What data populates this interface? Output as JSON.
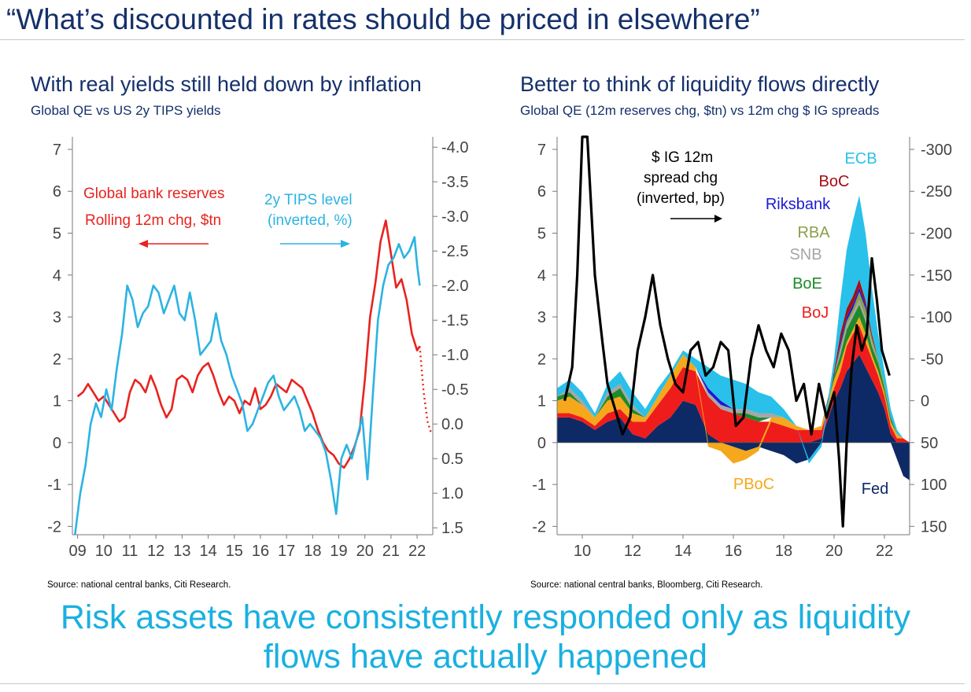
{
  "header": {
    "title": "“What’s discounted in rates should be priced in elsewhere”"
  },
  "left_panel": {
    "title": "With real yields still held down by inflation",
    "subtitle": "Global QE vs US 2y TIPS yields",
    "source": "Source: national central banks, Citi Research."
  },
  "right_panel": {
    "title": "Better to think of liquidity flows directly",
    "subtitle": "Global QE (12m reserves chg, $tn) vs 12m chg $ IG spreads",
    "source": "Source: national central banks, Bloomberg, Citi Research."
  },
  "footer": {
    "line1": "Risk assets have consistently responded only as liquidity",
    "line2": "flows have actually happened"
  },
  "chart_data": [
    {
      "type": "line",
      "title": "With real yields still held down by inflation",
      "subtitle": "Global QE vs US 2y TIPS yields",
      "x_ticks": [
        "09",
        "10",
        "11",
        "12",
        "13",
        "14",
        "15",
        "16",
        "17",
        "18",
        "19",
        "20",
        "21",
        "22"
      ],
      "x_range": [
        2008.8,
        2022.6
      ],
      "y_left_ticks": [
        "7",
        "6",
        "5",
        "4",
        "3",
        "2",
        "1",
        "0",
        "-1",
        "-2"
      ],
      "y_left_range": [
        -2.2,
        7.3
      ],
      "y_right_ticks": [
        "-4.0",
        "-3.5",
        "-3.0",
        "-2.5",
        "-2.0",
        "-1.5",
        "-1.0",
        "-0.5",
        "0.0",
        "0.5",
        "1.0",
        "1.5"
      ],
      "y_right_range_inverted": [
        1.6,
        -4.15
      ],
      "annotations": {
        "red_label_1": "Global bank reserves",
        "red_label_2": "Rolling 12m chg, $tn",
        "blue_label_1": "2y TIPS level",
        "blue_label_2": "(inverted, %)"
      },
      "colors": {
        "reserves": "#e8231e",
        "tips": "#2cb3e2"
      },
      "series": [
        {
          "name": "Global bank reserves, rolling 12m chg ($tn), left axis",
          "axis": "left",
          "x": [
            2009.0,
            2009.2,
            2009.4,
            2009.6,
            2009.8,
            2010.0,
            2010.2,
            2010.4,
            2010.6,
            2010.8,
            2011.0,
            2011.2,
            2011.4,
            2011.6,
            2011.8,
            2012.0,
            2012.2,
            2012.4,
            2012.6,
            2012.8,
            2013.0,
            2013.2,
            2013.4,
            2013.6,
            2013.8,
            2014.0,
            2014.2,
            2014.4,
            2014.6,
            2014.8,
            2015.0,
            2015.2,
            2015.4,
            2015.6,
            2015.8,
            2016.0,
            2016.2,
            2016.4,
            2016.6,
            2016.8,
            2017.0,
            2017.2,
            2017.4,
            2017.6,
            2017.8,
            2018.0,
            2018.2,
            2018.4,
            2018.6,
            2018.8,
            2019.0,
            2019.2,
            2019.4,
            2019.6,
            2019.8,
            2020.0,
            2020.2,
            2020.4,
            2020.6,
            2020.8,
            2021.0,
            2021.2,
            2021.4,
            2021.6,
            2021.8,
            2022.0,
            2022.1
          ],
          "values": [
            1.1,
            1.2,
            1.4,
            1.2,
            1.0,
            1.1,
            0.9,
            0.7,
            0.5,
            0.6,
            1.2,
            1.5,
            1.4,
            1.2,
            1.6,
            1.3,
            0.9,
            0.6,
            0.8,
            1.5,
            1.6,
            1.5,
            1.2,
            1.6,
            1.8,
            1.9,
            1.6,
            1.2,
            0.9,
            1.1,
            1.0,
            0.7,
            1.0,
            0.9,
            1.3,
            0.8,
            0.9,
            1.1,
            1.4,
            1.3,
            1.2,
            1.5,
            1.4,
            1.3,
            1.0,
            0.7,
            0.3,
            0.0,
            -0.2,
            -0.3,
            -0.5,
            -0.6,
            -0.4,
            -0.1,
            0.3,
            1.5,
            3.0,
            3.8,
            4.8,
            5.3,
            4.5,
            3.7,
            3.9,
            3.4,
            2.6,
            2.2,
            2.3
          ]
        },
        {
          "name": "Global bank reserves, projected (dotted)",
          "axis": "left",
          "style": "dotted",
          "x": [
            2022.1,
            2022.25,
            2022.4,
            2022.55
          ],
          "values": [
            2.3,
            1.2,
            0.5,
            0.2
          ]
        },
        {
          "name": "US 2y TIPS yield (inverted, %), right axis",
          "axis": "right",
          "x": [
            2008.9,
            2009.0,
            2009.1,
            2009.3,
            2009.5,
            2009.7,
            2009.9,
            2010.1,
            2010.3,
            2010.5,
            2010.7,
            2010.9,
            2011.1,
            2011.3,
            2011.5,
            2011.7,
            2011.9,
            2012.1,
            2012.3,
            2012.5,
            2012.7,
            2012.9,
            2013.1,
            2013.3,
            2013.5,
            2013.7,
            2013.9,
            2014.1,
            2014.3,
            2014.5,
            2014.7,
            2014.9,
            2015.1,
            2015.3,
            2015.5,
            2015.7,
            2015.9,
            2016.1,
            2016.3,
            2016.5,
            2016.7,
            2016.9,
            2017.1,
            2017.3,
            2017.5,
            2017.7,
            2017.9,
            2018.1,
            2018.3,
            2018.5,
            2018.7,
            2018.9,
            2019.1,
            2019.3,
            2019.5,
            2019.7,
            2019.9,
            2020.1,
            2020.3,
            2020.5,
            2020.7,
            2020.9,
            2021.1,
            2021.3,
            2021.5,
            2021.7,
            2021.9,
            2022.0,
            2022.1
          ],
          "values": [
            1.6,
            1.3,
            1.0,
            0.6,
            0.0,
            -0.3,
            -0.1,
            -0.5,
            -0.2,
            -0.8,
            -1.3,
            -2.0,
            -1.8,
            -1.4,
            -1.6,
            -1.7,
            -2.0,
            -1.9,
            -1.6,
            -1.8,
            -2.0,
            -1.6,
            -1.5,
            -1.9,
            -1.5,
            -1.0,
            -1.1,
            -1.2,
            -1.6,
            -1.2,
            -1.0,
            -0.7,
            -0.5,
            -0.3,
            0.1,
            0.0,
            -0.2,
            -0.4,
            -0.6,
            -0.7,
            -0.4,
            -0.2,
            -0.3,
            -0.4,
            -0.2,
            0.1,
            0.0,
            0.1,
            0.2,
            0.4,
            0.8,
            1.3,
            0.5,
            0.3,
            0.5,
            0.2,
            -0.1,
            0.8,
            -0.4,
            -1.5,
            -2.0,
            -2.3,
            -2.4,
            -2.6,
            -2.4,
            -2.5,
            -2.7,
            -2.3,
            -2.0
          ]
        }
      ]
    },
    {
      "type": "area",
      "stacked": true,
      "title": "Better to think of liquidity flows directly",
      "subtitle": "Global QE (12m reserves chg, $tn) vs 12m chg $ IG spreads",
      "x_ticks": [
        "10",
        "12",
        "14",
        "16",
        "18",
        "20",
        "22"
      ],
      "x_range": [
        2009.0,
        2023.0
      ],
      "y_left_ticks": [
        "7",
        "6",
        "5",
        "4",
        "3",
        "2",
        "1",
        "0",
        "-1",
        "-2"
      ],
      "y_left_range": [
        -2.2,
        7.3
      ],
      "y_right_ticks": [
        "-300",
        "-250",
        "-200",
        "-150",
        "-100",
        "-50",
        "0",
        "50",
        "100",
        "150"
      ],
      "y_right_range_inverted": [
        160,
        -315
      ],
      "annotations": {
        "spread_line_1": "$ IG 12m",
        "spread_line_2": "spread chg",
        "spread_line_3": "(inverted, bp)"
      },
      "x": [
        2009.0,
        2009.5,
        2010.0,
        2010.5,
        2011.0,
        2011.5,
        2012.0,
        2012.5,
        2013.0,
        2013.5,
        2014.0,
        2014.5,
        2015.0,
        2015.5,
        2016.0,
        2016.5,
        2017.0,
        2017.5,
        2018.0,
        2018.5,
        2019.0,
        2019.5,
        2020.0,
        2020.25,
        2020.5,
        2020.75,
        2021.0,
        2021.25,
        2021.5,
        2021.75,
        2022.0,
        2022.25,
        2022.5,
        2022.75,
        2023.0
      ],
      "series": [
        {
          "name": "Fed",
          "color": "#0d2a66",
          "values": [
            0.6,
            0.6,
            0.5,
            0.3,
            0.5,
            0.6,
            0.2,
            0.1,
            0.4,
            0.6,
            1.0,
            0.9,
            0.2,
            0.0,
            -0.1,
            -0.2,
            -0.1,
            -0.2,
            -0.3,
            -0.5,
            -0.4,
            0.1,
            1.0,
            1.3,
            1.7,
            1.9,
            2.1,
            1.8,
            1.5,
            1.2,
            0.8,
            0.2,
            -0.4,
            -0.8,
            -0.9
          ]
        },
        {
          "name": "BoJ",
          "color": "#ef1c1c",
          "values": [
            0.1,
            0.1,
            0.1,
            0.1,
            0.2,
            0.2,
            0.3,
            0.4,
            0.5,
            0.7,
            0.8,
            0.8,
            0.9,
            0.8,
            0.7,
            0.6,
            0.5,
            0.5,
            0.4,
            0.3,
            0.3,
            0.2,
            0.3,
            0.4,
            0.6,
            0.7,
            0.7,
            0.6,
            0.5,
            0.4,
            0.3,
            0.2,
            0.1,
            0.1,
            0.0
          ]
        },
        {
          "name": "PBoC",
          "color": "#f5a81c",
          "values": [
            0.3,
            0.4,
            0.3,
            0.2,
            0.3,
            0.3,
            0.2,
            0.1,
            0.2,
            0.3,
            0.3,
            0.1,
            -0.1,
            -0.2,
            -0.4,
            -0.2,
            -0.1,
            0.1,
            0.2,
            0.1,
            0.0,
            0.1,
            0.2,
            0.2,
            0.1,
            0.1,
            0.2,
            0.2,
            0.1,
            0.1,
            0.1,
            0.1,
            0.1,
            0.0,
            0.0
          ]
        },
        {
          "name": "BoE",
          "color": "#1e8a2a",
          "values": [
            0.1,
            0.1,
            0.0,
            0.0,
            0.1,
            0.2,
            0.1,
            0.0,
            0.0,
            0.0,
            0.0,
            0.0,
            0.0,
            0.0,
            0.0,
            0.1,
            0.1,
            0.0,
            0.0,
            0.0,
            0.0,
            0.0,
            0.1,
            0.2,
            0.3,
            0.3,
            0.3,
            0.3,
            0.2,
            0.2,
            0.1,
            0.1,
            0.0,
            0.0,
            0.0
          ]
        },
        {
          "name": "SNB",
          "color": "#a6a6a6",
          "values": [
            0.0,
            0.1,
            0.1,
            0.0,
            0.1,
            0.1,
            0.1,
            0.0,
            0.0,
            0.0,
            0.0,
            0.0,
            0.1,
            0.1,
            0.1,
            0.1,
            0.1,
            0.1,
            0.0,
            0.0,
            0.0,
            0.0,
            0.0,
            0.1,
            0.1,
            0.1,
            0.1,
            0.1,
            0.1,
            0.0,
            0.0,
            0.0,
            0.0,
            0.0,
            0.0
          ]
        },
        {
          "name": "RBA",
          "color": "#8aa048",
          "values": [
            0.0,
            0.0,
            0.0,
            0.0,
            0.0,
            0.0,
            0.0,
            0.0,
            0.0,
            0.0,
            0.0,
            0.0,
            0.0,
            0.0,
            0.0,
            0.0,
            0.0,
            0.0,
            0.0,
            0.0,
            0.0,
            0.0,
            0.0,
            0.1,
            0.1,
            0.1,
            0.2,
            0.2,
            0.1,
            0.1,
            0.1,
            0.0,
            0.0,
            0.0,
            0.0
          ]
        },
        {
          "name": "Riksbank",
          "color": "#1a1ad4",
          "values": [
            0.0,
            0.0,
            0.0,
            0.0,
            0.0,
            0.0,
            0.0,
            0.0,
            0.0,
            0.0,
            0.0,
            0.0,
            0.1,
            0.1,
            0.0,
            0.0,
            0.0,
            0.0,
            0.0,
            0.0,
            0.0,
            0.0,
            0.0,
            0.1,
            0.1,
            0.1,
            0.1,
            0.1,
            0.0,
            0.0,
            0.0,
            0.0,
            0.0,
            0.0,
            0.0
          ]
        },
        {
          "name": "BoC",
          "color": "#a50e14",
          "values": [
            0.0,
            0.0,
            0.0,
            0.0,
            0.0,
            0.0,
            0.0,
            0.0,
            0.0,
            0.0,
            0.0,
            0.0,
            0.0,
            0.0,
            0.0,
            0.0,
            0.0,
            0.0,
            0.0,
            0.0,
            0.0,
            0.0,
            0.1,
            0.2,
            0.2,
            0.2,
            0.2,
            0.1,
            0.1,
            0.0,
            0.0,
            0.0,
            0.0,
            0.0,
            0.0
          ]
        },
        {
          "name": "ECB",
          "color": "#29c0ea",
          "values": [
            0.2,
            0.2,
            0.2,
            0.1,
            0.2,
            0.3,
            0.3,
            0.2,
            0.2,
            0.1,
            0.1,
            0.2,
            0.5,
            0.6,
            0.7,
            0.6,
            0.5,
            0.4,
            0.2,
            0.0,
            -0.1,
            -0.1,
            0.3,
            0.8,
            1.4,
            1.8,
            2.0,
            1.6,
            1.1,
            0.6,
            0.3,
            0.2,
            0.1,
            0.0,
            0.0
          ]
        }
      ],
      "line": {
        "name": "$ IG 12m spread chg (inverted, bp), right axis",
        "color": "#000000",
        "x": [
          2009.3,
          2009.6,
          2009.8,
          2010.0,
          2010.2,
          2010.5,
          2010.8,
          2011.0,
          2011.3,
          2011.6,
          2011.9,
          2012.2,
          2012.5,
          2012.8,
          2013.1,
          2013.4,
          2013.7,
          2014.0,
          2014.3,
          2014.6,
          2014.9,
          2015.2,
          2015.5,
          2015.8,
          2016.1,
          2016.4,
          2016.7,
          2017.0,
          2017.3,
          2017.6,
          2017.9,
          2018.2,
          2018.5,
          2018.8,
          2019.1,
          2019.4,
          2019.7,
          2020.0,
          2020.2,
          2020.35,
          2020.5,
          2020.7,
          2020.9,
          2021.1,
          2021.3,
          2021.5,
          2021.7,
          2021.9,
          2022.2
        ],
        "values": [
          0,
          -40,
          -150,
          -320,
          -320,
          -150,
          -70,
          -20,
          10,
          40,
          20,
          -60,
          -100,
          -150,
          -90,
          -50,
          -20,
          -10,
          -60,
          -70,
          -30,
          -40,
          -70,
          -60,
          30,
          20,
          -50,
          -90,
          -60,
          -40,
          -80,
          -60,
          0,
          -20,
          40,
          -20,
          20,
          -10,
          70,
          150,
          50,
          -40,
          -90,
          -60,
          -80,
          -170,
          -120,
          -60,
          -30
        ]
      }
    }
  ]
}
